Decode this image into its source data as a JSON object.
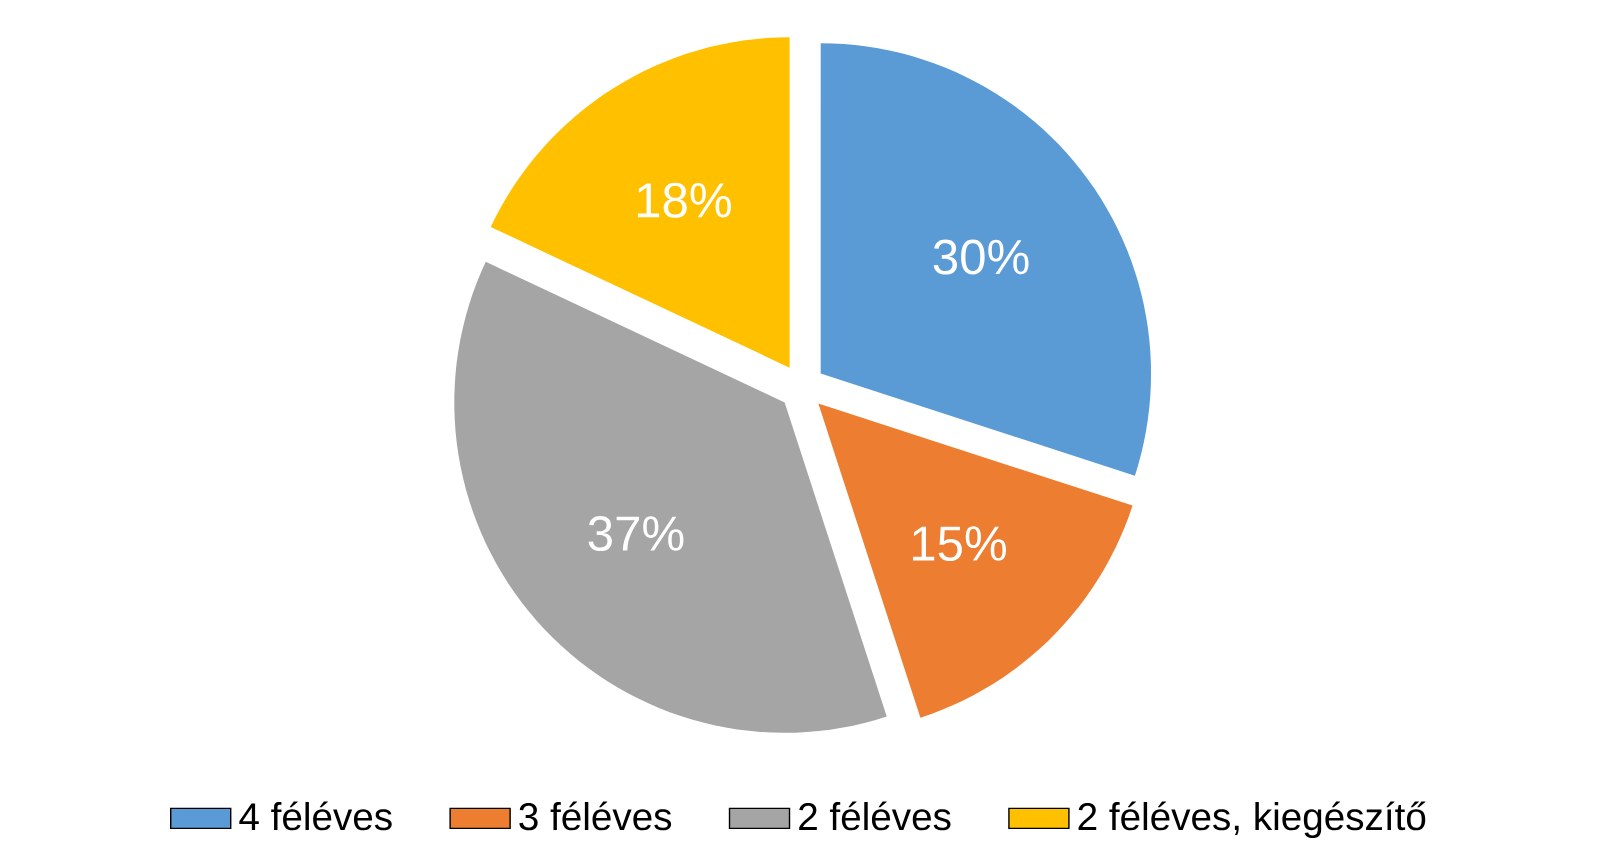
{
  "chart_data": {
    "type": "pie",
    "categories": [
      "4 féléves",
      "3 féléves",
      "2 féléves",
      "2 féléves, kiegészítő"
    ],
    "values": [
      30,
      15,
      37,
      18
    ],
    "colors": [
      "#5b9bd5",
      "#ed7d31",
      "#a5a5a5",
      "#ffc000"
    ],
    "value_labels": [
      "30%",
      "15%",
      "37%",
      "18%"
    ],
    "legend": "bottom"
  }
}
